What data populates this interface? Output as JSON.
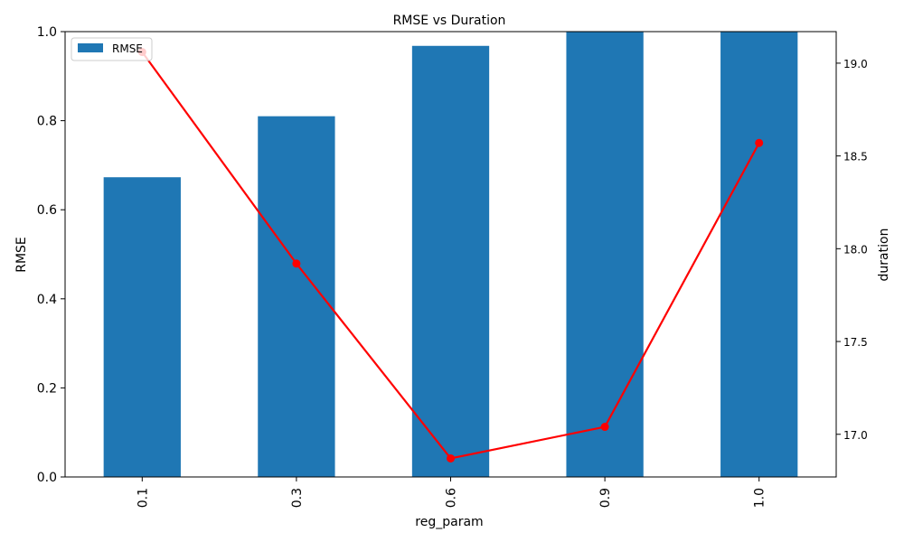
{
  "chart_data": {
    "type": "bar",
    "title": "RMSE vs Duration",
    "xlabel": "reg_param",
    "ylabel": "RMSE",
    "y2label": "duration",
    "categories": [
      "0.1",
      "0.3",
      "0.6",
      "0.9",
      "1.0"
    ],
    "series": [
      {
        "name": "RMSE",
        "type": "bar",
        "axis": "left",
        "color": "#1f77b4",
        "values": [
          0.673,
          0.81,
          0.968,
          1.0,
          1.0
        ]
      },
      {
        "type": "line",
        "axis": "right",
        "color": "#ff0000",
        "marker": "circle",
        "values": [
          19.06,
          17.92,
          16.87,
          17.04,
          18.57
        ]
      }
    ],
    "ylim": [
      0,
      1.0
    ],
    "yticks": [
      "0.0",
      "0.2",
      "0.4",
      "0.6",
      "0.8",
      "1.0"
    ],
    "y2lim": [
      16.77,
      19.17
    ],
    "y2ticks": [
      "17.0",
      "17.5",
      "18.0",
      "18.5",
      "19.0"
    ],
    "legend": {
      "position": "top-left",
      "entries": [
        "RMSE"
      ]
    },
    "grid": false
  }
}
